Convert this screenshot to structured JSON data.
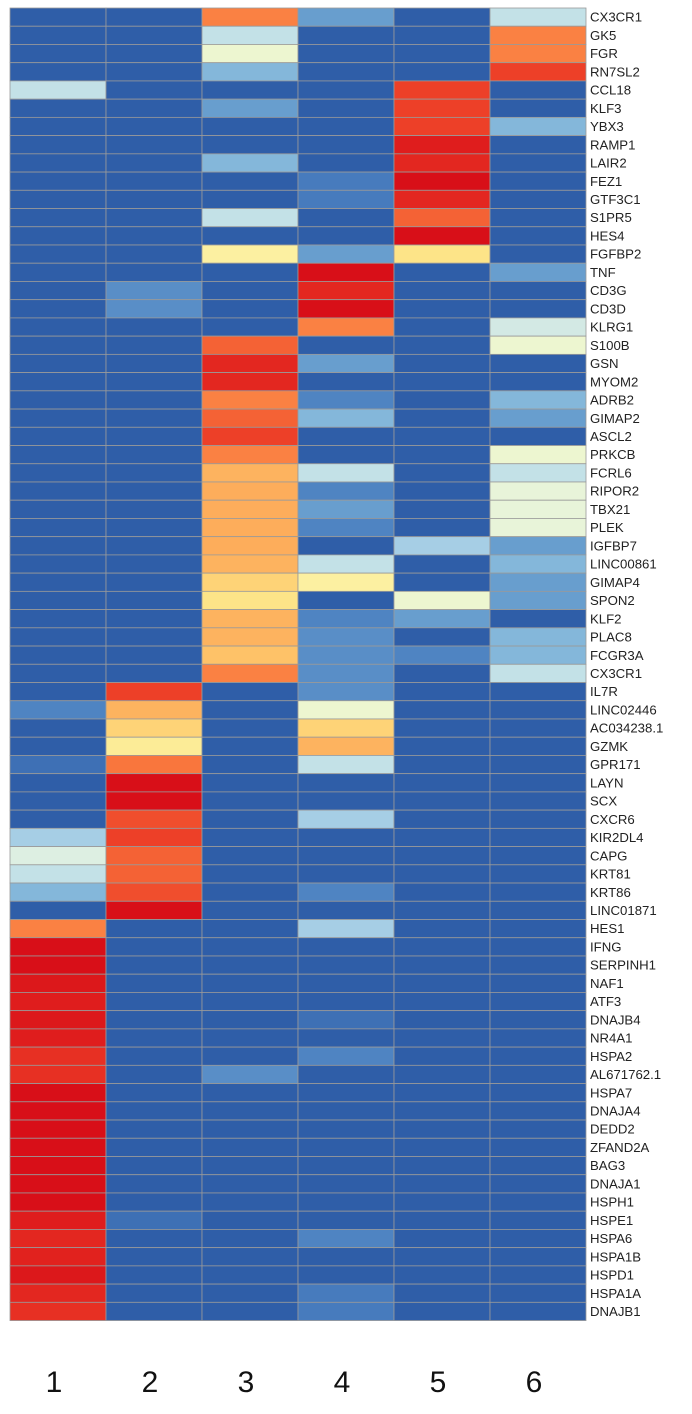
{
  "chart_data": {
    "type": "heatmap",
    "title": "",
    "xlabel": "",
    "ylabel": "",
    "legend": "none",
    "grid": true,
    "color_scale": {
      "min_color": "#2f5ea8",
      "stops": [
        "#2f5ea8",
        "#4a7fc0",
        "#78aed6",
        "#b5d9ea",
        "#e4f3e0",
        "#fbfab8",
        "#fde68a",
        "#fec66a",
        "#fdab5a",
        "#f9773d",
        "#ec3a26",
        "#d80f18"
      ],
      "max_color": "#d80f18"
    },
    "value_range": [
      0,
      1
    ],
    "columns": [
      "1",
      "2",
      "3",
      "4",
      "5",
      "6"
    ],
    "rows": [
      {
        "gene": "CX3CR1",
        "values": [
          0,
          0,
          0.8,
          0.15,
          0,
          0.3
        ]
      },
      {
        "gene": "GK5",
        "values": [
          0,
          0,
          0.3,
          0,
          0,
          0.8
        ]
      },
      {
        "gene": "FGR",
        "values": [
          0,
          0,
          0.4,
          0,
          0,
          0.8
        ]
      },
      {
        "gene": "RN7SL2",
        "values": [
          0,
          0,
          0.2,
          0,
          0,
          0.9
        ]
      },
      {
        "gene": "CCL18",
        "values": [
          0.3,
          0,
          0,
          0,
          0.9,
          0
        ]
      },
      {
        "gene": "KLF3",
        "values": [
          0,
          0,
          0.15,
          0,
          0.9,
          0
        ]
      },
      {
        "gene": "YBX3",
        "values": [
          0,
          0,
          0,
          0,
          0.9,
          0.2
        ]
      },
      {
        "gene": "RAMP1",
        "values": [
          0,
          0,
          0,
          0,
          0.97,
          0
        ]
      },
      {
        "gene": "LAIR2",
        "values": [
          0,
          0,
          0.2,
          0,
          0.95,
          0
        ]
      },
      {
        "gene": "FEZ1",
        "values": [
          0,
          0,
          0,
          0.08,
          1.0,
          0
        ]
      },
      {
        "gene": "GTF3C1",
        "values": [
          0,
          0,
          0,
          0.08,
          0.95,
          0
        ]
      },
      {
        "gene": "S1PR5",
        "values": [
          0,
          0,
          0.3,
          0,
          0.85,
          0
        ]
      },
      {
        "gene": "HES4",
        "values": [
          0,
          0,
          0,
          0,
          1.0,
          0
        ]
      },
      {
        "gene": "FGFBP2",
        "values": [
          0,
          0,
          0.5,
          0.15,
          0.55,
          0
        ]
      },
      {
        "gene": "TNF",
        "values": [
          0,
          0,
          0,
          1.0,
          0,
          0.15
        ]
      },
      {
        "gene": "CD3G",
        "values": [
          0,
          0.12,
          0,
          0.95,
          0,
          0
        ]
      },
      {
        "gene": "CD3D",
        "values": [
          0,
          0.12,
          0,
          1.0,
          0,
          0
        ]
      },
      {
        "gene": "KLRG1",
        "values": [
          0,
          0,
          0,
          0.8,
          0,
          0.33
        ]
      },
      {
        "gene": "S100B",
        "values": [
          0,
          0,
          0.85,
          0,
          0,
          0.4
        ]
      },
      {
        "gene": "GSN",
        "values": [
          0,
          0,
          0.95,
          0.15,
          0,
          0
        ]
      },
      {
        "gene": "MYOM2",
        "values": [
          0,
          0,
          0.95,
          0,
          0,
          0
        ]
      },
      {
        "gene": "ADRB2",
        "values": [
          0,
          0,
          0.8,
          0.1,
          0,
          0.2
        ]
      },
      {
        "gene": "GIMAP2",
        "values": [
          0,
          0,
          0.85,
          0.2,
          0,
          0.15
        ]
      },
      {
        "gene": "ASCL2",
        "values": [
          0,
          0,
          0.9,
          0,
          0,
          0
        ]
      },
      {
        "gene": "PRKCB",
        "values": [
          0,
          0,
          0.8,
          0,
          0,
          0.4
        ]
      },
      {
        "gene": "FCRL6",
        "values": [
          0,
          0,
          0.7,
          0.3,
          0,
          0.3
        ]
      },
      {
        "gene": "RIPOR2",
        "values": [
          0,
          0,
          0.72,
          0.1,
          0,
          0.38
        ]
      },
      {
        "gene": "TBX21",
        "values": [
          0,
          0,
          0.72,
          0.15,
          0,
          0.38
        ]
      },
      {
        "gene": "PLEK",
        "values": [
          0,
          0,
          0.72,
          0.1,
          0,
          0.38
        ]
      },
      {
        "gene": "IGFBP7",
        "values": [
          0,
          0,
          0.72,
          0,
          0.25,
          0.15
        ]
      },
      {
        "gene": "LINC00861",
        "values": [
          0,
          0,
          0.7,
          0.3,
          0,
          0.2
        ]
      },
      {
        "gene": "GIMAP4",
        "values": [
          0,
          0,
          0.6,
          0.5,
          0,
          0.15
        ]
      },
      {
        "gene": "SPON2",
        "values": [
          0,
          0,
          0.55,
          0,
          0.4,
          0.15
        ]
      },
      {
        "gene": "KLF2",
        "values": [
          0,
          0,
          0.7,
          0.1,
          0.15,
          0
        ]
      },
      {
        "gene": "PLAC8",
        "values": [
          0,
          0,
          0.7,
          0.12,
          0,
          0.2
        ]
      },
      {
        "gene": "FCGR3A",
        "values": [
          0,
          0,
          0.65,
          0.12,
          0.1,
          0.2
        ]
      },
      {
        "gene": "CX3CR1",
        "values": [
          0,
          0,
          0.8,
          0.12,
          0,
          0.3
        ]
      },
      {
        "gene": "IL7R",
        "values": [
          0,
          0.9,
          0,
          0.12,
          0,
          0
        ]
      },
      {
        "gene": "LINC02446",
        "values": [
          0.1,
          0.7,
          0,
          0.4,
          0,
          0
        ]
      },
      {
        "gene": "AC034238.1",
        "values": [
          0,
          0.6,
          0,
          0.6,
          0,
          0
        ]
      },
      {
        "gene": "GZMK",
        "values": [
          0,
          0.52,
          0,
          0.7,
          0,
          0
        ]
      },
      {
        "gene": "GPR171",
        "values": [
          0.05,
          0.82,
          0,
          0.3,
          0,
          0
        ]
      },
      {
        "gene": "LAYN",
        "values": [
          0,
          1.0,
          0,
          0,
          0,
          0
        ]
      },
      {
        "gene": "SCX",
        "values": [
          0,
          1.0,
          0,
          0,
          0,
          0
        ]
      },
      {
        "gene": "CXCR6",
        "values": [
          0,
          0.88,
          0,
          0.25,
          0,
          0
        ]
      },
      {
        "gene": "KIR2DL4",
        "values": [
          0.25,
          0.9,
          0,
          0,
          0,
          0
        ]
      },
      {
        "gene": "CAPG",
        "values": [
          0.35,
          0.85,
          0,
          0,
          0,
          0
        ]
      },
      {
        "gene": "KRT81",
        "values": [
          0.3,
          0.85,
          0,
          0,
          0,
          0
        ]
      },
      {
        "gene": "KRT86",
        "values": [
          0.2,
          0.88,
          0,
          0.1,
          0,
          0
        ]
      },
      {
        "gene": "LINC01871",
        "values": [
          0,
          1.0,
          0,
          0,
          0,
          0
        ]
      },
      {
        "gene": "HES1",
        "values": [
          0.8,
          0,
          0,
          0.25,
          0,
          0
        ]
      },
      {
        "gene": "IFNG",
        "values": [
          1.0,
          0,
          0,
          0,
          0,
          0
        ]
      },
      {
        "gene": "SERPINH1",
        "values": [
          1.0,
          0,
          0,
          0,
          0,
          0
        ]
      },
      {
        "gene": "NAF1",
        "values": [
          0.98,
          0,
          0,
          0,
          0,
          0
        ]
      },
      {
        "gene": "ATF3",
        "values": [
          0.97,
          0,
          0,
          0,
          0,
          0
        ]
      },
      {
        "gene": "DNAJB4",
        "values": [
          0.98,
          0,
          0,
          0.05,
          0,
          0
        ]
      },
      {
        "gene": "NR4A1",
        "values": [
          0.97,
          0,
          0,
          0,
          0,
          0
        ]
      },
      {
        "gene": "HSPA2",
        "values": [
          0.93,
          0,
          0,
          0.1,
          0,
          0
        ]
      },
      {
        "gene": "AL671762.1",
        "values": [
          0.93,
          0,
          0.12,
          0,
          0,
          0
        ]
      },
      {
        "gene": "HSPA7",
        "values": [
          1.0,
          0,
          0,
          0,
          0,
          0
        ]
      },
      {
        "gene": "DNAJA4",
        "values": [
          1.0,
          0,
          0,
          0,
          0,
          0
        ]
      },
      {
        "gene": "DEDD2",
        "values": [
          1.0,
          0,
          0,
          0,
          0,
          0
        ]
      },
      {
        "gene": "ZFAND2A",
        "values": [
          1.0,
          0,
          0,
          0,
          0,
          0
        ]
      },
      {
        "gene": "BAG3",
        "values": [
          1.0,
          0,
          0,
          0,
          0,
          0
        ]
      },
      {
        "gene": "DNAJA1",
        "values": [
          1.0,
          0,
          0,
          0,
          0,
          0
        ]
      },
      {
        "gene": "HSPH1",
        "values": [
          1.0,
          0,
          0,
          0,
          0,
          0
        ]
      },
      {
        "gene": "HSPE1",
        "values": [
          0.97,
          0.05,
          0,
          0,
          0,
          0
        ]
      },
      {
        "gene": "HSPA6",
        "values": [
          0.95,
          0,
          0,
          0.1,
          0,
          0
        ]
      },
      {
        "gene": "HSPA1B",
        "values": [
          0.96,
          0,
          0,
          0,
          0,
          0
        ]
      },
      {
        "gene": "HSPD1",
        "values": [
          0.98,
          0,
          0,
          0,
          0,
          0
        ]
      },
      {
        "gene": "HSPA1A",
        "values": [
          0.95,
          0,
          0,
          0.08,
          0,
          0
        ]
      },
      {
        "gene": "DNAJB1",
        "values": [
          0.93,
          0,
          0,
          0.08,
          0,
          0
        ]
      }
    ]
  }
}
